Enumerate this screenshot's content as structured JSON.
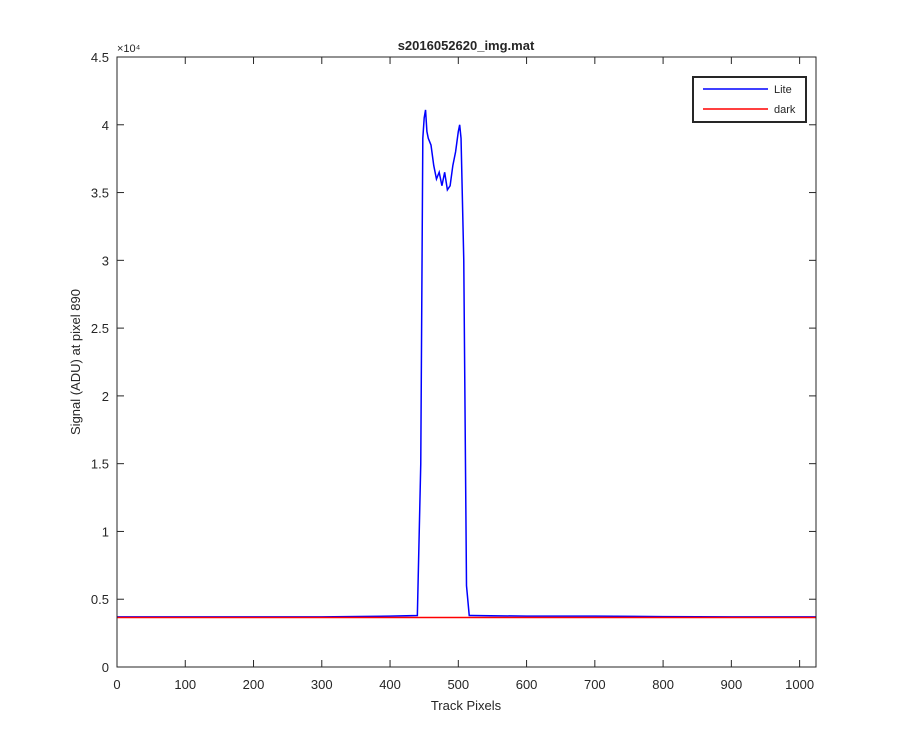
{
  "chart_data": {
    "type": "line",
    "title": "s2016052620_img.mat",
    "x_label": "Track Pixels",
    "y_label": "Signal (ADU) at pixel 890",
    "y_exponent": "×10⁴",
    "x": [
      0,
      100,
      200,
      300,
      400,
      440,
      445,
      448,
      450,
      452,
      454,
      456,
      460,
      464,
      468,
      472,
      476,
      480,
      484,
      488,
      492,
      496,
      500,
      502,
      504,
      508,
      512,
      516,
      520,
      600,
      700,
      800,
      900,
      1024
    ],
    "series": [
      {
        "name": "Lite",
        "color": "#0000ff",
        "values": [
          0.37,
          0.37,
          0.37,
          0.37,
          0.375,
          0.38,
          1.5,
          3.9,
          4.05,
          4.11,
          3.95,
          3.9,
          3.85,
          3.7,
          3.6,
          3.65,
          3.55,
          3.65,
          3.52,
          3.55,
          3.7,
          3.8,
          3.95,
          4.0,
          3.9,
          3.0,
          0.6,
          0.38,
          0.38,
          0.375,
          0.375,
          0.372,
          0.37,
          0.37
        ]
      },
      {
        "name": "dark",
        "color": "#ff0000",
        "values": [
          0.365,
          0.365,
          0.365,
          0.365,
          0.365,
          0.365,
          0.365,
          0.365,
          0.365,
          0.365,
          0.365,
          0.365,
          0.365,
          0.365,
          0.365,
          0.365,
          0.365,
          0.365,
          0.365,
          0.365,
          0.365,
          0.365,
          0.365,
          0.365,
          0.365,
          0.365,
          0.365,
          0.365,
          0.365,
          0.365,
          0.365,
          0.365,
          0.365,
          0.365
        ]
      }
    ],
    "xlim": [
      0,
      1024
    ],
    "xticks": [
      0,
      100,
      200,
      300,
      400,
      500,
      600,
      700,
      800,
      900,
      1000
    ],
    "ylim": [
      0,
      4.5
    ],
    "yticks": [
      0,
      0.5,
      1,
      1.5,
      2,
      2.5,
      3,
      3.5,
      4,
      4.5
    ],
    "grid": false,
    "legend": "northeast"
  }
}
